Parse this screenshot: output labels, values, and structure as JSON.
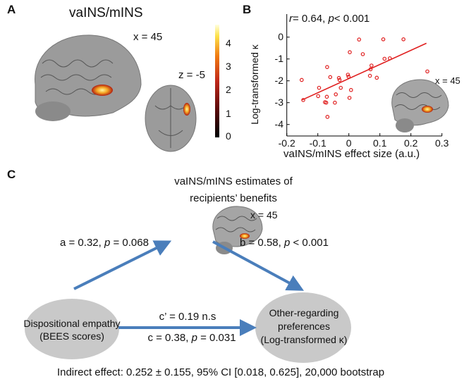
{
  "panel_a": {
    "label": "A",
    "title": "vaINS/mINS",
    "sagittal_label": "x = 45",
    "axial_label": "z = -5",
    "colorbar_ticks": [
      "4",
      "3",
      "2",
      "1",
      "0"
    ],
    "colorbar_colors": [
      "#000000",
      "#5a0a0a",
      "#c0281a",
      "#f07a12",
      "#fde24a",
      "#ffffe0"
    ]
  },
  "panel_b": {
    "label": "B",
    "inset_label": "x = 45",
    "stat_r": "r",
    "stat_text": "= 0.64, ",
    "stat_p": "p",
    "stat_p_text": "< 0.001"
  },
  "chart_data": {
    "type": "scatter",
    "title": "r = 0.64, p < 0.001",
    "xlabel": "vaINS/mINS effect size (a.u.)",
    "ylabel": "Log-transformed κ",
    "xlim": [
      -0.2,
      0.3
    ],
    "ylim": [
      -4.5,
      0.6
    ],
    "xticks": [
      "-0.2",
      "-0.1",
      "0",
      "0.1",
      "0.2",
      "0.3"
    ],
    "xtick_values": [
      -0.2,
      -0.1,
      0,
      0.1,
      0.2,
      0.3
    ],
    "yticks": [
      "0",
      "-1",
      "-2",
      "-3",
      "-4"
    ],
    "ytick_values": [
      0,
      -1,
      -2,
      -3,
      -4
    ],
    "marker_color": "#e02020",
    "fit_line": {
      "x": [
        -0.15,
        0.25
      ],
      "y": [
        -2.87,
        -0.28
      ],
      "color": "#e02020"
    },
    "points": [
      [
        -0.152,
        -1.96
      ],
      [
        -0.147,
        -2.88
      ],
      [
        -0.096,
        -2.32
      ],
      [
        -0.099,
        -2.7
      ],
      [
        -0.07,
        -1.37
      ],
      [
        -0.06,
        -1.83
      ],
      [
        -0.071,
        -2.73
      ],
      [
        -0.077,
        -2.98
      ],
      [
        -0.073,
        -3.0
      ],
      [
        -0.069,
        -3.65
      ],
      [
        -0.045,
        -3.0
      ],
      [
        -0.042,
        -2.62
      ],
      [
        -0.032,
        -1.87
      ],
      [
        -0.03,
        -1.96
      ],
      [
        -0.026,
        -2.32
      ],
      [
        -0.003,
        -1.72
      ],
      [
        -0.001,
        -1.81
      ],
      [
        0.002,
        -2.78
      ],
      [
        0.007,
        -2.42
      ],
      [
        0.003,
        -0.69
      ],
      [
        0.033,
        -0.11
      ],
      [
        0.045,
        -0.78
      ],
      [
        0.073,
        -1.3
      ],
      [
        0.07,
        -1.47
      ],
      [
        0.068,
        -1.77
      ],
      [
        0.09,
        -1.86
      ],
      [
        0.111,
        -0.1
      ],
      [
        0.115,
        -0.99
      ],
      [
        0.132,
        -0.97
      ],
      [
        0.176,
        -0.1
      ],
      [
        0.253,
        -1.57
      ]
    ]
  },
  "panel_c": {
    "label": "C",
    "mediator_line1": "vaINS/mINS estimates of",
    "mediator_line2": "recipients’ benefits",
    "brain_label": "x = 45",
    "path_a": {
      "pre": "a = 0.32, ",
      "p": "p",
      "post": " = 0.068"
    },
    "path_b": {
      "pre": "b = 0.58, ",
      "p": "p",
      "post": " < 0.001"
    },
    "path_c_prime": "c’ = 0.19 n.s",
    "path_c": {
      "pre": "c = 0.38, ",
      "p": "p",
      "post": " = 0.031"
    },
    "predictor_line1": "Dispositional empathy",
    "predictor_line2": "(BEES scores)",
    "outcome_line1": "Other-regarding",
    "outcome_line2": "preferences",
    "outcome_line3": "(Log-transformed κ)",
    "indirect_effect": "Indirect effect: 0.252 ± 0.155, 95% CI [0.018, 0.625], 20,000 bootstrap",
    "arrow_color": "#4a7ebb",
    "node_color": "#c9c9c9"
  }
}
